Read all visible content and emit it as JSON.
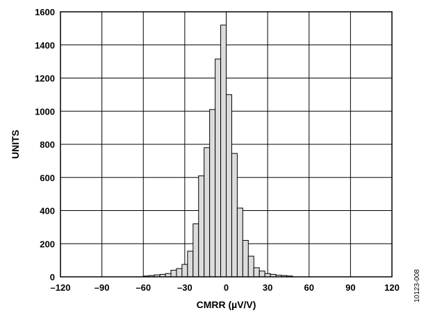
{
  "chart_data": {
    "type": "bar",
    "xlabel": "CMRR (µV/V)",
    "ylabel": "UNITS",
    "xlim": [
      -120,
      120
    ],
    "ylim": [
      0,
      1600
    ],
    "x_ticks": [
      -120,
      -90,
      -60,
      -30,
      0,
      30,
      60,
      90,
      120
    ],
    "x_tick_labels": [
      "–120",
      "–90",
      "–60",
      "–30",
      "0",
      "30",
      "60",
      "90",
      "120"
    ],
    "y_ticks": [
      0,
      200,
      400,
      600,
      800,
      1000,
      1200,
      1400,
      1600
    ],
    "y_tick_labels": [
      "0",
      "200",
      "400",
      "600",
      "800",
      "1000",
      "1200",
      "1400",
      "1600"
    ],
    "bin_width": 4,
    "bins": [
      {
        "x": -60,
        "value": 5
      },
      {
        "x": -56,
        "value": 8
      },
      {
        "x": -52,
        "value": 12
      },
      {
        "x": -48,
        "value": 15
      },
      {
        "x": -44,
        "value": 20
      },
      {
        "x": -40,
        "value": 40
      },
      {
        "x": -36,
        "value": 50
      },
      {
        "x": -32,
        "value": 75
      },
      {
        "x": -28,
        "value": 155
      },
      {
        "x": -24,
        "value": 320
      },
      {
        "x": -20,
        "value": 610
      },
      {
        "x": -16,
        "value": 780
      },
      {
        "x": -12,
        "value": 1010
      },
      {
        "x": -8,
        "value": 1315
      },
      {
        "x": -4,
        "value": 1520
      },
      {
        "x": 0,
        "value": 1100
      },
      {
        "x": 4,
        "value": 745
      },
      {
        "x": 8,
        "value": 415
      },
      {
        "x": 12,
        "value": 220
      },
      {
        "x": 16,
        "value": 125
      },
      {
        "x": 20,
        "value": 55
      },
      {
        "x": 24,
        "value": 35
      },
      {
        "x": 28,
        "value": 20
      },
      {
        "x": 32,
        "value": 15
      },
      {
        "x": 36,
        "value": 10
      },
      {
        "x": 40,
        "value": 8
      },
      {
        "x": 44,
        "value": 5
      }
    ],
    "grid": true,
    "bar_fill": "#dcdcdc",
    "bar_stroke": "#000000",
    "figure_id": "10123-008"
  }
}
